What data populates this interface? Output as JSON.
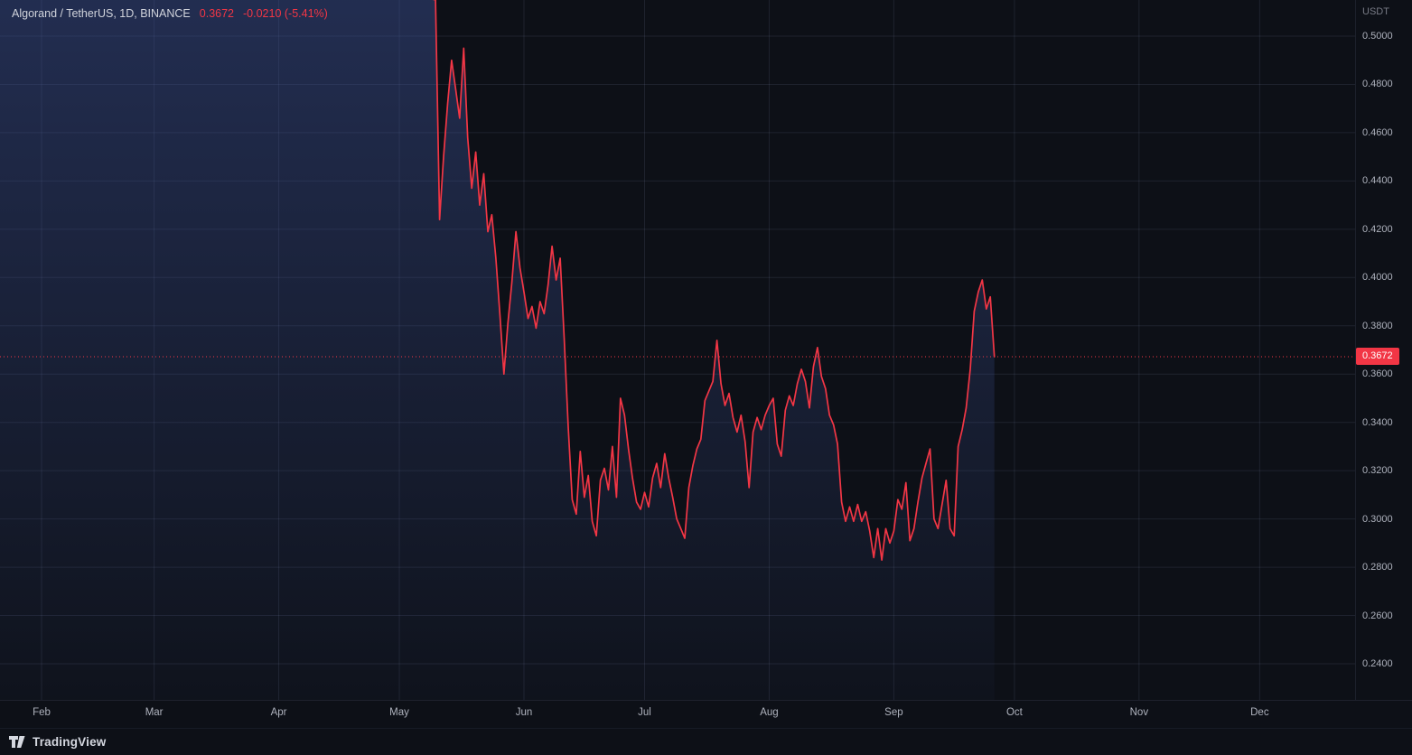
{
  "header": {
    "title": "Algorand / TetherUS, 1D, BINANCE",
    "last_price": "0.3672",
    "change": "-0.0210 (-5.41%)"
  },
  "price_scale": {
    "unit": "USDT",
    "last_price_label": "0.3672"
  },
  "time_scale": {
    "months": [
      {
        "label": "Feb",
        "day": 0
      },
      {
        "label": "Mar",
        "day": 28
      },
      {
        "label": "Apr",
        "day": 59
      },
      {
        "label": "May",
        "day": 89
      },
      {
        "label": "Jun",
        "day": 120
      },
      {
        "label": "Jul",
        "day": 150
      },
      {
        "label": "Aug",
        "day": 181
      },
      {
        "label": "Sep",
        "day": 212
      },
      {
        "label": "Oct",
        "day": 242
      },
      {
        "label": "Nov",
        "day": 273
      },
      {
        "label": "Dec",
        "day": 303
      }
    ]
  },
  "footer": {
    "brand": "TradingView"
  },
  "colors": {
    "line": "#f23645",
    "accent": "#f23645",
    "bg": "#0d1017",
    "grid": "rgba(145,160,200,0.13)",
    "fill_top": "rgba(64,86,160,0.42)",
    "fill_bottom": "rgba(64,86,160,0.04)",
    "axis_text": "#aeb2bd",
    "legend_text": "#d1d4dc",
    "badge_text": "#ffffff"
  },
  "chart_data": {
    "type": "line",
    "title": "Algorand / TetherUS",
    "symbol": "ALGOUSDT",
    "exchange": "BINANCE",
    "interval": "1D",
    "unit": "USDT",
    "last_price": 0.3672,
    "change": -0.021,
    "change_pct": -5.41,
    "ylim": [
      0.24,
      0.5
    ],
    "y_ticks": [
      0.5,
      0.48,
      0.46,
      0.44,
      0.42,
      0.4,
      0.38,
      0.36,
      0.34,
      0.32,
      0.3,
      0.28,
      0.26,
      0.24
    ],
    "x_axis_months": [
      "Feb",
      "Mar",
      "Apr",
      "May",
      "Jun",
      "Jul",
      "Aug",
      "Sep",
      "Oct",
      "Nov",
      "Dec"
    ],
    "points_format": "[day_offset_from_Feb_1, price_usdt]",
    "points": [
      [
        -11,
        0.56
      ],
      [
        98,
        0.515
      ],
      [
        99,
        0.424
      ],
      [
        100,
        0.45
      ],
      [
        101,
        0.472
      ],
      [
        102,
        0.49
      ],
      [
        103,
        0.478
      ],
      [
        104,
        0.466
      ],
      [
        105,
        0.495
      ],
      [
        106,
        0.458
      ],
      [
        107,
        0.437
      ],
      [
        108,
        0.452
      ],
      [
        109,
        0.43
      ],
      [
        110,
        0.443
      ],
      [
        111,
        0.419
      ],
      [
        112,
        0.426
      ],
      [
        113,
        0.408
      ],
      [
        114,
        0.385
      ],
      [
        115,
        0.36
      ],
      [
        116,
        0.381
      ],
      [
        117,
        0.398
      ],
      [
        118,
        0.419
      ],
      [
        119,
        0.404
      ],
      [
        120,
        0.394
      ],
      [
        121,
        0.383
      ],
      [
        122,
        0.388
      ],
      [
        123,
        0.379
      ],
      [
        124,
        0.39
      ],
      [
        125,
        0.385
      ],
      [
        126,
        0.397
      ],
      [
        127,
        0.413
      ],
      [
        128,
        0.399
      ],
      [
        129,
        0.408
      ],
      [
        130,
        0.375
      ],
      [
        131,
        0.338
      ],
      [
        132,
        0.308
      ],
      [
        133,
        0.302
      ],
      [
        134,
        0.328
      ],
      [
        135,
        0.309
      ],
      [
        136,
        0.318
      ],
      [
        137,
        0.299
      ],
      [
        138,
        0.293
      ],
      [
        139,
        0.316
      ],
      [
        140,
        0.321
      ],
      [
        141,
        0.312
      ],
      [
        142,
        0.33
      ],
      [
        143,
        0.309
      ],
      [
        144,
        0.35
      ],
      [
        145,
        0.343
      ],
      [
        146,
        0.329
      ],
      [
        147,
        0.317
      ],
      [
        148,
        0.307
      ],
      [
        149,
        0.304
      ],
      [
        150,
        0.311
      ],
      [
        151,
        0.305
      ],
      [
        152,
        0.317
      ],
      [
        153,
        0.323
      ],
      [
        154,
        0.313
      ],
      [
        155,
        0.327
      ],
      [
        156,
        0.317
      ],
      [
        157,
        0.309
      ],
      [
        158,
        0.3
      ],
      [
        159,
        0.296
      ],
      [
        160,
        0.292
      ],
      [
        161,
        0.313
      ],
      [
        162,
        0.322
      ],
      [
        163,
        0.329
      ],
      [
        164,
        0.333
      ],
      [
        165,
        0.349
      ],
      [
        166,
        0.353
      ],
      [
        167,
        0.357
      ],
      [
        168,
        0.374
      ],
      [
        169,
        0.356
      ],
      [
        170,
        0.347
      ],
      [
        171,
        0.352
      ],
      [
        172,
        0.342
      ],
      [
        173,
        0.336
      ],
      [
        174,
        0.343
      ],
      [
        175,
        0.332
      ],
      [
        176,
        0.313
      ],
      [
        177,
        0.336
      ],
      [
        178,
        0.342
      ],
      [
        179,
        0.337
      ],
      [
        180,
        0.343
      ],
      [
        181,
        0.347
      ],
      [
        182,
        0.35
      ],
      [
        183,
        0.331
      ],
      [
        184,
        0.326
      ],
      [
        185,
        0.345
      ],
      [
        186,
        0.351
      ],
      [
        187,
        0.347
      ],
      [
        188,
        0.356
      ],
      [
        189,
        0.362
      ],
      [
        190,
        0.357
      ],
      [
        191,
        0.346
      ],
      [
        192,
        0.363
      ],
      [
        193,
        0.371
      ],
      [
        194,
        0.359
      ],
      [
        195,
        0.354
      ],
      [
        196,
        0.343
      ],
      [
        197,
        0.339
      ],
      [
        198,
        0.331
      ],
      [
        199,
        0.307
      ],
      [
        200,
        0.299
      ],
      [
        201,
        0.305
      ],
      [
        202,
        0.299
      ],
      [
        203,
        0.306
      ],
      [
        204,
        0.299
      ],
      [
        205,
        0.303
      ],
      [
        206,
        0.295
      ],
      [
        207,
        0.284
      ],
      [
        208,
        0.296
      ],
      [
        209,
        0.283
      ],
      [
        210,
        0.296
      ],
      [
        211,
        0.29
      ],
      [
        212,
        0.295
      ],
      [
        213,
        0.308
      ],
      [
        214,
        0.304
      ],
      [
        215,
        0.315
      ],
      [
        216,
        0.291
      ],
      [
        217,
        0.296
      ],
      [
        218,
        0.307
      ],
      [
        219,
        0.317
      ],
      [
        220,
        0.323
      ],
      [
        221,
        0.329
      ],
      [
        222,
        0.3
      ],
      [
        223,
        0.296
      ],
      [
        224,
        0.306
      ],
      [
        225,
        0.316
      ],
      [
        226,
        0.296
      ],
      [
        227,
        0.293
      ],
      [
        228,
        0.33
      ],
      [
        229,
        0.337
      ],
      [
        230,
        0.346
      ],
      [
        231,
        0.362
      ],
      [
        232,
        0.386
      ],
      [
        233,
        0.394
      ],
      [
        234,
        0.399
      ],
      [
        235,
        0.387
      ],
      [
        236,
        0.392
      ],
      [
        237,
        0.3672
      ]
    ]
  }
}
